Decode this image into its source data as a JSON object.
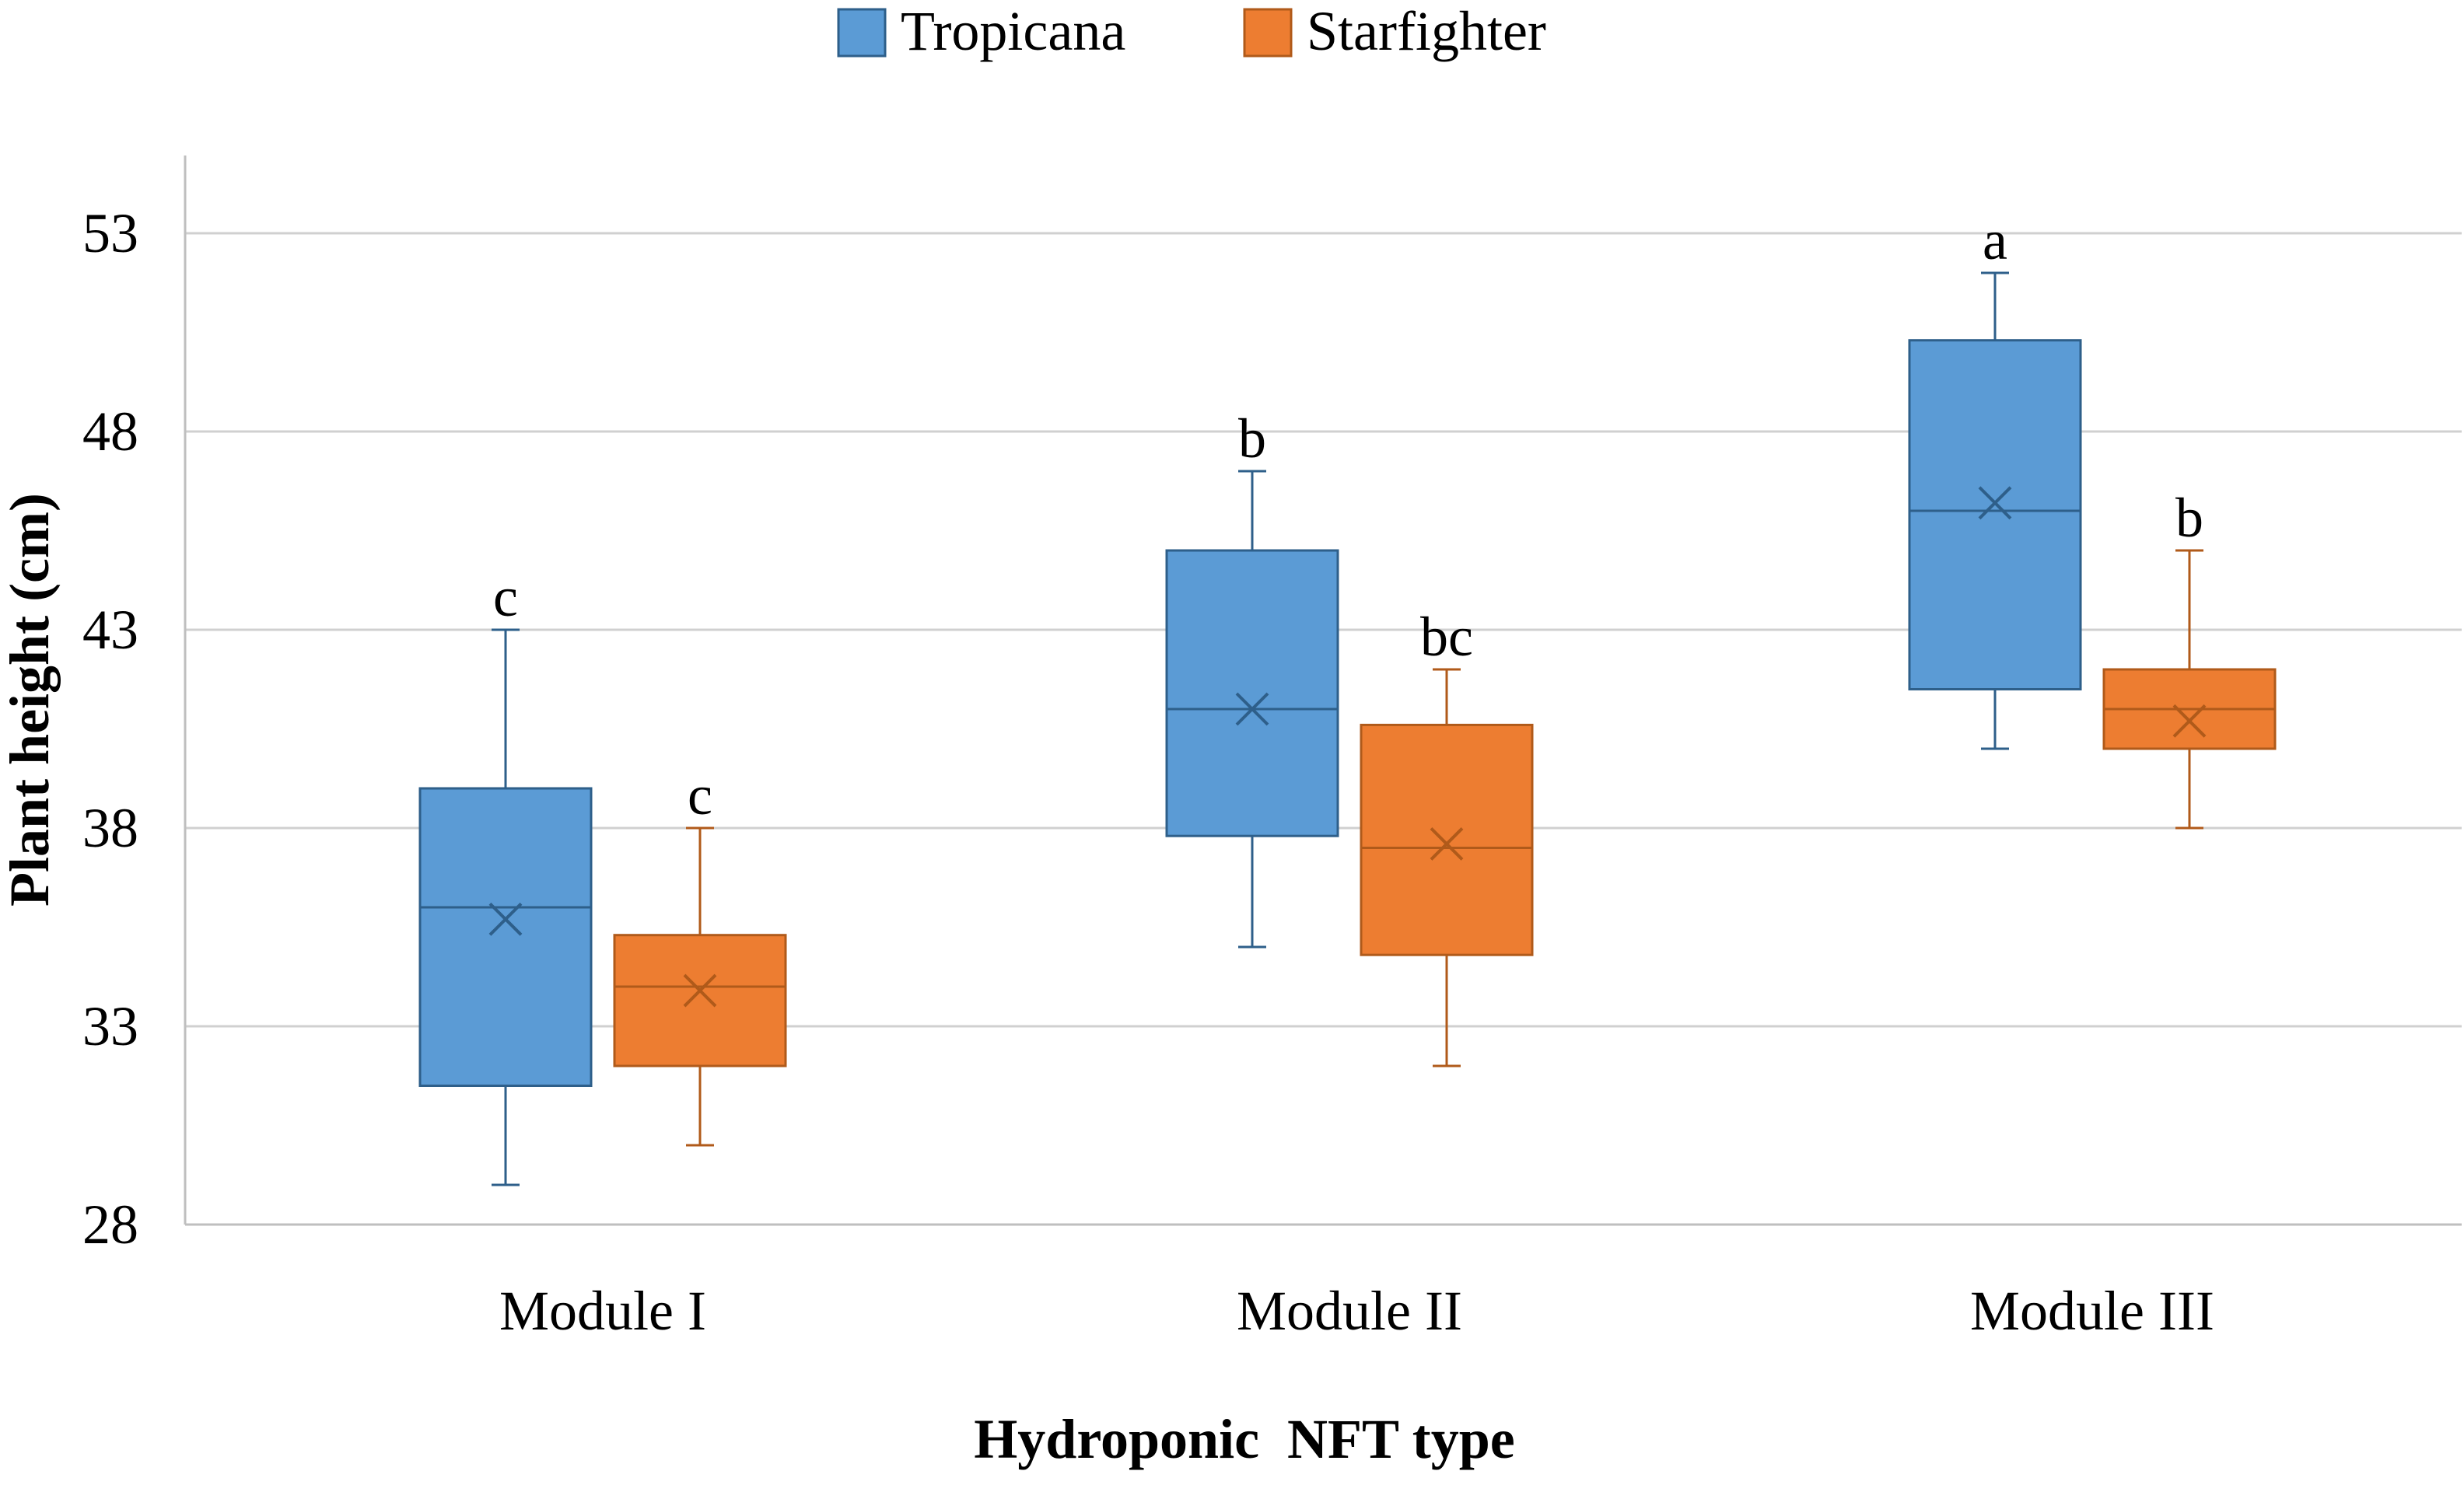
{
  "chart_data": {
    "type": "box",
    "title": "",
    "xlabel": "Hydroponic  NFT type",
    "ylabel": "Plant height (cm)",
    "ylim": [
      28,
      55
    ],
    "yticks": [
      28,
      33,
      38,
      43,
      48,
      53
    ],
    "categories": [
      "Module I",
      "Module II",
      "Module III"
    ],
    "legend_position": "top-center",
    "grid": true,
    "series": [
      {
        "name": "Tropicana",
        "color": "#5B9BD5",
        "edge_color": "#2E5F8A",
        "boxes": [
          {
            "whisker_low": 29,
            "q1": 31.5,
            "median": 36,
            "q3": 39,
            "whisker_high": 43,
            "mean": 35.7,
            "letter": "c"
          },
          {
            "whisker_low": 35,
            "q1": 37.8,
            "median": 41,
            "q3": 45,
            "whisker_high": 47,
            "mean": 41,
            "letter": "b"
          },
          {
            "whisker_low": 40,
            "q1": 41.5,
            "median": 46,
            "q3": 50.3,
            "whisker_high": 52,
            "mean": 46.2,
            "letter": "a"
          }
        ]
      },
      {
        "name": "Starfighter",
        "color": "#ED7D31",
        "edge_color": "#B05A1A",
        "boxes": [
          {
            "whisker_low": 30,
            "q1": 32,
            "median": 34,
            "q3": 35.3,
            "whisker_high": 38,
            "mean": 33.9,
            "letter": "c"
          },
          {
            "whisker_low": 32,
            "q1": 34.8,
            "median": 37.5,
            "q3": 40.6,
            "whisker_high": 42,
            "mean": 37.6,
            "letter": "bc"
          },
          {
            "whisker_low": 38,
            "q1": 40,
            "median": 41,
            "q3": 42,
            "whisker_high": 45,
            "mean": 40.7,
            "letter": "b"
          }
        ]
      }
    ]
  }
}
